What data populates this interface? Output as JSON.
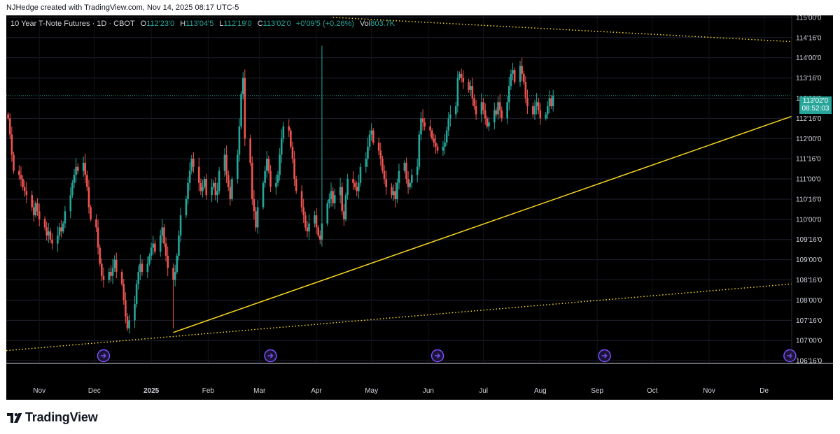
{
  "header": {
    "attribution": "NJHedge created with TradingView.com, Nov 14, 2025 08:17 UTC-5"
  },
  "legend": {
    "symbol": "10 Year T-Note Futures · 1D · CBOT",
    "open_key": "O",
    "open": "112'23'0",
    "high_key": "H",
    "high": "113'04'5",
    "low_key": "L",
    "low": "112'19'0",
    "close_key": "C",
    "close": "113'02'0",
    "change": "+0'09'5 (+0.26%)",
    "vol_key": "Vol",
    "vol": "803.7K"
  },
  "price_badge": {
    "price": "113'02'0",
    "countdown": "08:52:03"
  },
  "footer": {
    "brand": "TradingView"
  },
  "colors": {
    "up": "#26a69a",
    "down": "#ef5350",
    "trendline": "#f5d623",
    "background": "#000000",
    "event_icon": "#7c4dff"
  },
  "icons": {
    "event": "arrow-circle-icon",
    "logo": "tradingview-logo-icon"
  },
  "chart_data": {
    "type": "candlestick",
    "y_axis": {
      "ticks": [
        106.5,
        107.0,
        107.5,
        108.0,
        108.5,
        109.0,
        109.5,
        110.0,
        110.5,
        111.0,
        111.5,
        112.0,
        112.5,
        113.0,
        113.5,
        114.0,
        114.5,
        115.0
      ],
      "labels": [
        "106'16'0",
        "107'00'0",
        "107'16'0",
        "108'00'0",
        "108'16'0",
        "109'00'0",
        "109'16'0",
        "110'00'0",
        "110'16'0",
        "111'00'0",
        "111'16'0",
        "112'00'0",
        "112'16'0",
        "113'00'0",
        "113'16'0",
        "114'00'0",
        "114'16'0",
        "115'00'0"
      ],
      "range": [
        106.45,
        115.05
      ]
    },
    "x_axis": {
      "labels": [
        "Nov",
        "Dec",
        "2025",
        "Feb",
        "Mar",
        "Apr",
        "May",
        "Jun",
        "Jul",
        "Aug",
        "Sep",
        "Oct",
        "Nov",
        "De"
      ],
      "dates": [
        "2024-11-01",
        "2024-12-01",
        "2025-01-01",
        "2025-02-01",
        "2025-03-01",
        "2025-04-01",
        "2025-05-01",
        "2025-06-01",
        "2025-07-01",
        "2025-08-01",
        "2025-09-01",
        "2025-10-01",
        "2025-11-01",
        "2025-12-01"
      ],
      "range": [
        "2024-10-14",
        "2025-12-16"
      ]
    },
    "last_price": 113.0625,
    "ohlc": {
      "start": "2024-10-15",
      "dates_step": "trading-days",
      "closes": [
        112.5,
        112.1,
        111.6,
        111.2,
        111.1,
        111.0,
        110.8,
        110.7,
        110.6,
        110.3,
        110.1,
        110.4,
        110.2,
        110.0,
        109.8,
        109.6,
        109.7,
        109.5,
        109.4,
        109.6,
        109.8,
        109.7,
        109.9,
        110.2,
        110.6,
        110.9,
        111.1,
        111.3,
        111.2,
        111.4,
        111.1,
        110.8,
        110.3,
        110.0,
        109.8,
        109.3,
        108.9,
        108.6,
        108.5,
        108.7,
        108.6,
        108.8,
        109.0,
        108.7,
        108.4,
        108.0,
        107.6,
        107.3,
        107.5,
        107.9,
        108.4,
        108.7,
        108.9,
        108.7,
        108.9,
        109.1,
        109.3,
        109.4,
        109.2,
        109.6,
        109.8,
        109.4,
        109.1,
        108.8,
        108.5,
        108.7,
        109.1,
        109.6,
        110.1,
        110.5,
        110.9,
        111.2,
        111.5,
        111.3,
        110.9,
        110.7,
        110.8,
        111.0,
        110.6,
        110.8,
        110.9,
        110.6,
        110.7,
        111.2,
        111.6,
        111.1,
        110.8,
        110.5,
        111.0,
        111.6,
        112.3,
        113.1,
        113.5,
        112.0,
        111.4,
        110.5,
        110.2,
        109.8,
        110.3,
        110.9,
        111.2,
        111.5,
        111.2,
        110.8,
        110.9,
        111.1,
        111.6,
        112.0,
        112.3,
        112.2,
        111.8,
        111.5,
        111.0,
        110.7,
        110.3,
        110.1,
        109.8,
        109.7,
        109.9,
        110.1,
        109.8,
        109.6,
        109.5,
        109.9,
        110.4,
        110.5,
        110.7,
        110.4,
        110.6,
        110.8,
        110.2,
        110.0,
        110.6,
        111.0,
        110.9,
        110.8,
        110.7,
        110.9,
        111.3,
        111.5,
        111.8,
        112.1,
        112.2,
        111.9,
        111.7,
        111.5,
        111.2,
        111.0,
        110.8,
        110.6,
        110.7,
        110.5,
        110.9,
        111.2,
        111.4,
        111.0,
        110.8,
        110.9,
        111.1,
        111.3,
        112.1,
        112.5,
        112.4,
        112.3,
        112.2,
        112.0,
        111.9,
        111.8,
        111.7,
        111.8,
        111.9,
        112.2,
        112.5,
        112.6,
        112.8,
        113.5,
        113.6,
        113.5,
        113.4,
        113.2,
        113.3,
        113.0,
        112.8,
        112.6,
        112.9,
        112.7,
        112.5,
        112.3,
        112.4,
        112.7,
        112.6,
        112.9,
        112.7,
        112.5,
        112.9,
        113.3,
        113.6,
        113.7,
        113.4,
        113.8,
        113.6,
        113.4,
        113.0,
        112.8,
        112.6,
        112.8,
        112.9,
        112.7,
        112.5,
        112.6,
        112.8,
        113.0,
        112.8,
        113.06
      ],
      "low_min_date": "2025-01-13",
      "low_min": 107.3,
      "high_max_date": "2025-04-04",
      "high_max": 114.3
    },
    "trendlines": [
      {
        "style": "solid",
        "from": [
          "2025-01-13",
          107.2
        ],
        "to": [
          "2025-12-16",
          112.55
        ]
      },
      {
        "style": "dotted",
        "from": [
          "2024-10-14",
          106.75
        ],
        "to": [
          "2025-12-16",
          108.4
        ]
      },
      {
        "style": "dotted",
        "from": [
          "2025-04-10",
          115.0
        ],
        "to": [
          "2025-12-16",
          114.4
        ]
      }
    ],
    "events": [
      "2024-12-06",
      "2025-03-07",
      "2025-06-06",
      "2025-09-05",
      "2025-12-15"
    ]
  }
}
